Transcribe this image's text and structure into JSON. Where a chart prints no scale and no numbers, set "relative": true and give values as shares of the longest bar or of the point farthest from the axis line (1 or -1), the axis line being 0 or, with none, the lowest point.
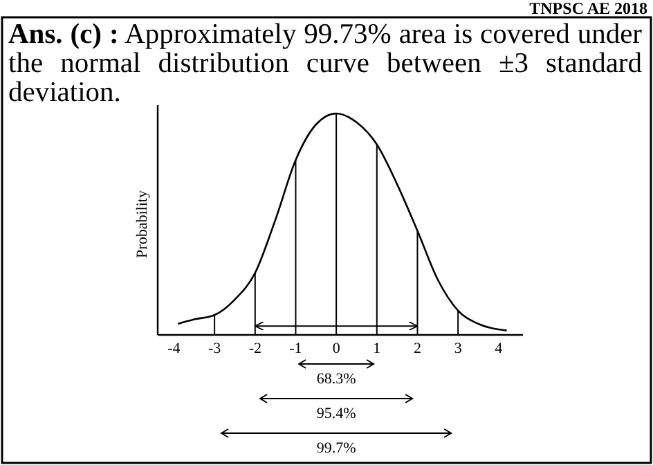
{
  "chart_data": {
    "type": "line",
    "title": "Ans. (c) :",
    "subtitle": "Approximately 99.73% area is covered under the normal distribution curve between ±3 standard deviation.",
    "ylabel": "Probability",
    "relative": true,
    "tick_labels": "x",
    "marker": "none",
    "line_style": "solid",
    "grid": false,
    "legend": false,
    "x": [
      -3.9,
      -3.5,
      -3,
      -2.5,
      -2,
      -1.5,
      -1,
      -0.5,
      0,
      0.5,
      1,
      1.5,
      2,
      2.5,
      3,
      3.5,
      4.2
    ],
    "xlim": [
      -4.4,
      4.6
    ],
    "xticks": [
      -4,
      -3,
      -2,
      -1,
      0,
      1,
      2,
      3,
      4
    ],
    "series": [
      {
        "color": "#000000",
        "values": [
          0.05,
          0.07,
          0.09,
          0.16,
          0.28,
          0.52,
          0.79,
          0.95,
          1,
          0.96,
          0.86,
          0.68,
          0.47,
          0.25,
          0.11,
          0.05,
          0.02
        ]
      },
      {
        "color": "#000000",
        "x": [
          -2,
          2
        ],
        "values": [
          0.04,
          0.04
        ]
      }
    ],
    "ref_lines": [
      {
        "axis": "x",
        "value": -3
      },
      {
        "axis": "x",
        "value": -2
      },
      {
        "axis": "x",
        "value": -1
      },
      {
        "axis": "x",
        "value": 0
      },
      {
        "axis": "x",
        "value": 1
      },
      {
        "axis": "x",
        "value": 2
      },
      {
        "axis": "x",
        "value": 3
      }
    ],
    "annotations": [
      "TNPSC AE 2018",
      "68.3%",
      "95.4%",
      "99.7%"
    ]
  }
}
